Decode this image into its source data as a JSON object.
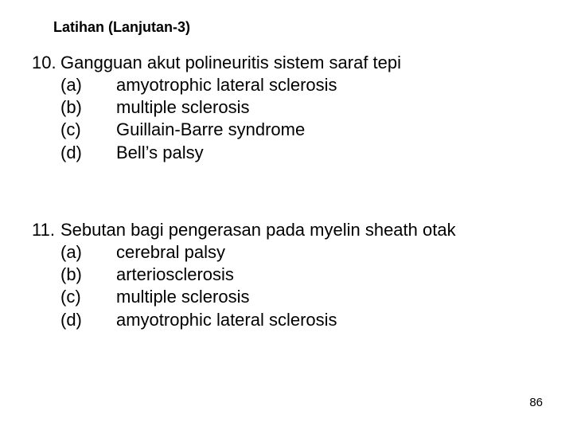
{
  "title": "Latihan (Lanjutan-3)",
  "questions": [
    {
      "number": "10.",
      "stem": "Gangguan akut polineuritis sistem saraf tepi",
      "options": [
        {
          "label": "(a)",
          "text": "amyotrophic lateral sclerosis"
        },
        {
          "label": "(b)",
          "text": "multiple sclerosis"
        },
        {
          "label": "(c)",
          "text": "Guillain-Barre syndrome"
        },
        {
          "label": "(d)",
          "text": "Bell’s palsy"
        }
      ]
    },
    {
      "number": "11.",
      "stem": "Sebutan bagi pengerasan pada myelin sheath otak",
      "options": [
        {
          "label": "(a)",
          "text": "cerebral palsy"
        },
        {
          "label": "(b)",
          "text": "arteriosclerosis"
        },
        {
          "label": "(c)",
          "text": "multiple sclerosis"
        },
        {
          "label": "(d)",
          "text": "amyotrophic lateral sclerosis"
        }
      ]
    }
  ],
  "pageNumber": "86"
}
